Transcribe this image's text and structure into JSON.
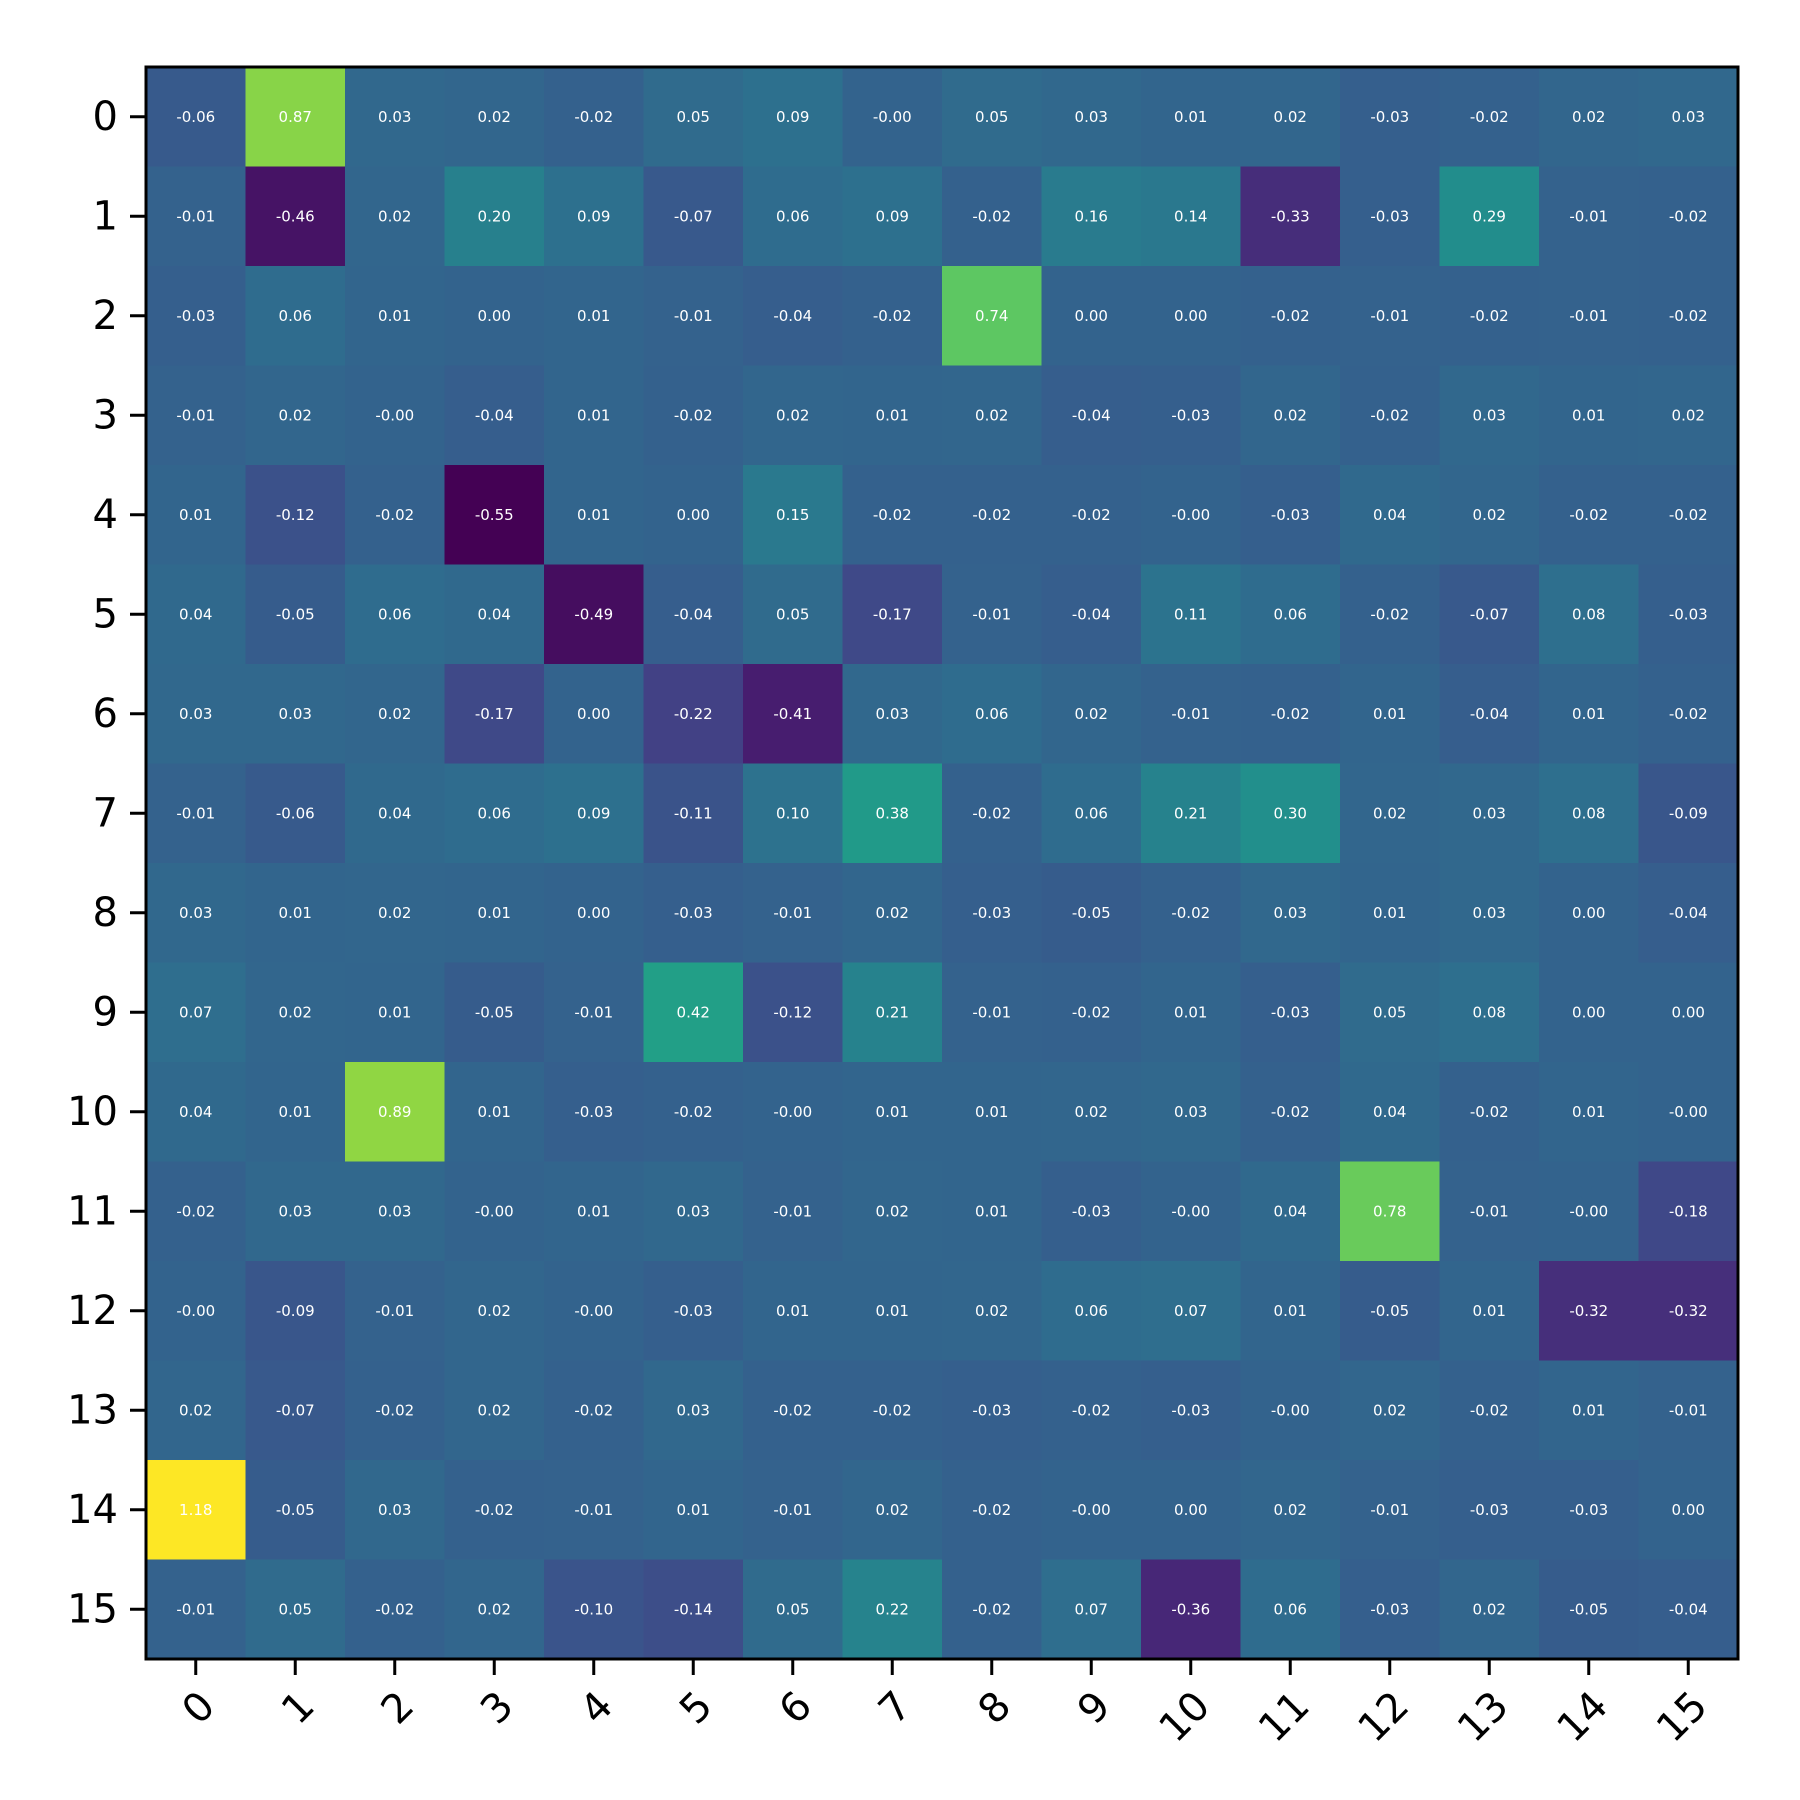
{
  "chart_data": {
    "type": "heatmap",
    "title": "",
    "xlabel": "",
    "ylabel": "",
    "x_categories": [
      "0",
      "1",
      "2",
      "3",
      "4",
      "5",
      "6",
      "7",
      "8",
      "9",
      "10",
      "11",
      "12",
      "13",
      "14",
      "15"
    ],
    "y_categories": [
      "0",
      "1",
      "2",
      "3",
      "4",
      "5",
      "6",
      "7",
      "8",
      "9",
      "10",
      "11",
      "12",
      "13",
      "14",
      "15"
    ],
    "colormap": "viridis",
    "value_range": [
      -0.55,
      1.18
    ],
    "values": [
      [
        -0.06,
        0.87,
        0.03,
        0.02,
        -0.02,
        0.05,
        0.09,
        -0.0,
        0.05,
        0.03,
        0.01,
        0.02,
        -0.03,
        -0.02,
        0.02,
        0.03
      ],
      [
        -0.01,
        -0.46,
        0.02,
        0.2,
        0.09,
        -0.07,
        0.06,
        0.09,
        -0.02,
        0.16,
        0.14,
        -0.33,
        -0.03,
        0.29,
        -0.01,
        -0.02
      ],
      [
        -0.03,
        0.06,
        0.01,
        0.0,
        0.01,
        -0.01,
        -0.04,
        -0.02,
        0.74,
        0.0,
        0.0,
        -0.02,
        -0.01,
        -0.02,
        -0.01,
        -0.02
      ],
      [
        -0.01,
        0.02,
        -0.0,
        -0.04,
        0.01,
        -0.02,
        0.02,
        0.01,
        0.02,
        -0.04,
        -0.03,
        0.02,
        -0.02,
        0.03,
        0.01,
        0.02
      ],
      [
        0.01,
        -0.12,
        -0.02,
        -0.55,
        0.01,
        0.0,
        0.15,
        -0.02,
        -0.02,
        -0.02,
        -0.0,
        -0.03,
        0.04,
        0.02,
        -0.02,
        -0.02
      ],
      [
        0.04,
        -0.05,
        0.06,
        0.04,
        -0.49,
        -0.04,
        0.05,
        -0.17,
        -0.01,
        -0.04,
        0.11,
        0.06,
        -0.02,
        -0.07,
        0.08,
        -0.03
      ],
      [
        0.03,
        0.03,
        0.02,
        -0.17,
        0.0,
        -0.22,
        -0.41,
        0.03,
        0.06,
        0.02,
        -0.01,
        -0.02,
        0.01,
        -0.04,
        0.01,
        -0.02
      ],
      [
        -0.01,
        -0.06,
        0.04,
        0.06,
        0.09,
        -0.11,
        0.1,
        0.38,
        -0.02,
        0.06,
        0.21,
        0.3,
        0.02,
        0.03,
        0.08,
        -0.09
      ],
      [
        0.03,
        0.01,
        0.02,
        0.01,
        0.0,
        -0.03,
        -0.01,
        0.02,
        -0.03,
        -0.05,
        -0.02,
        0.03,
        0.01,
        0.03,
        0.0,
        -0.04
      ],
      [
        0.07,
        0.02,
        0.01,
        -0.05,
        -0.01,
        0.42,
        -0.12,
        0.21,
        -0.01,
        -0.02,
        0.01,
        -0.03,
        0.05,
        0.08,
        0.0,
        0.0
      ],
      [
        0.04,
        0.01,
        0.89,
        0.01,
        -0.03,
        -0.02,
        -0.0,
        0.01,
        0.01,
        0.02,
        0.03,
        -0.02,
        0.04,
        -0.02,
        0.01,
        -0.0
      ],
      [
        -0.02,
        0.03,
        0.03,
        -0.0,
        0.01,
        0.03,
        -0.01,
        0.02,
        0.01,
        -0.03,
        -0.0,
        0.04,
        0.78,
        -0.01,
        -0.0,
        -0.18
      ],
      [
        -0.0,
        -0.09,
        -0.01,
        0.02,
        -0.0,
        -0.03,
        0.01,
        0.01,
        0.02,
        0.06,
        0.07,
        0.01,
        -0.05,
        0.01,
        -0.32,
        -0.32
      ],
      [
        0.02,
        -0.07,
        -0.02,
        0.02,
        -0.02,
        0.03,
        -0.02,
        -0.02,
        -0.03,
        -0.02,
        -0.03,
        -0.0,
        0.02,
        -0.02,
        0.01,
        -0.01
      ],
      [
        1.18,
        -0.05,
        0.03,
        -0.02,
        -0.01,
        0.01,
        -0.01,
        0.02,
        -0.02,
        -0.0,
        0.0,
        0.02,
        -0.01,
        -0.03,
        -0.03,
        0.0
      ],
      [
        -0.01,
        0.05,
        -0.02,
        0.02,
        -0.1,
        -0.14,
        0.05,
        0.22,
        -0.02,
        0.07,
        -0.36,
        0.06,
        -0.03,
        0.02,
        -0.05,
        -0.04
      ]
    ],
    "cell_label_color": "#ffffff",
    "grid": false,
    "legend": "none"
  }
}
